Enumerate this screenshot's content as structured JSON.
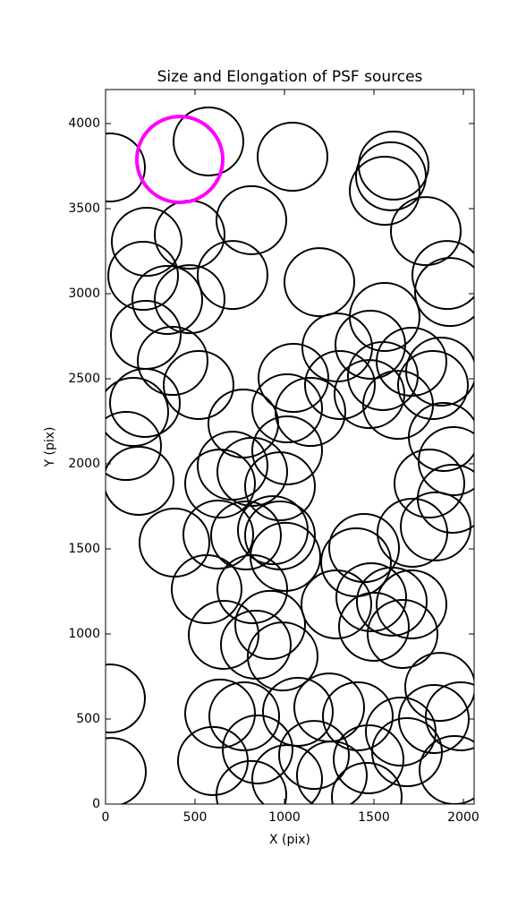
{
  "chart_data": {
    "type": "ellipse",
    "title": "Size and Elongation of PSF sources",
    "xlabel": "X (pix)",
    "ylabel": "Y (pix)",
    "xlim": [
      0,
      2060
    ],
    "ylim": [
      0,
      4200
    ],
    "xticks": [
      0,
      500,
      1000,
      1500,
      2000
    ],
    "yticks": [
      0,
      500,
      1000,
      1500,
      2000,
      2500,
      3000,
      3500,
      4000
    ],
    "ellipses": {
      "color": "#000000",
      "width": 390,
      "height": 400,
      "x": [
        25,
        575,
        1045,
        1610,
        1560,
        1595,
        815,
        1790,
        230,
        470,
        710,
        210,
        1195,
        1910,
        1925,
        345,
        470,
        1560,
        225,
        1295,
        1480,
        1710,
        375,
        1875,
        1550,
        1050,
        1830,
        520,
        1310,
        1475,
        1635,
        220,
        155,
        1015,
        1145,
        770,
        1890,
        115,
        1015,
        1945,
        710,
        185,
        640,
        820,
        975,
        1810,
        1940,
        935,
        385,
        630,
        785,
        975,
        1715,
        1845,
        1005,
        1445,
        1400,
        565,
        820,
        1290,
        1485,
        1710,
        1600,
        920,
        660,
        1500,
        1660,
        840,
        990,
        25,
        1870,
        640,
        775,
        1075,
        1250,
        1410,
        1835,
        1985,
        1650,
        850,
        1165,
        1470,
        1685,
        30,
        600,
        1015,
        1265,
        1950,
        815,
        1460
      ],
      "y": [
        3742,
        3895,
        3805,
        3753,
        3605,
        3690,
        3432,
        3368,
        3305,
        3347,
        3110,
        3105,
        3068,
        3110,
        3010,
        2963,
        2968,
        2863,
        2758,
        2684,
        2700,
        2600,
        2605,
        2542,
        2516,
        2505,
        2463,
        2463,
        2463,
        2410,
        2347,
        2358,
        2305,
        2326,
        2305,
        2237,
        2158,
        2105,
        2079,
        2016,
        1989,
        1900,
        1884,
        1953,
        1868,
        1884,
        1795,
        1610,
        1537,
        1584,
        1579,
        1579,
        1595,
        1632,
        1453,
        1505,
        1421,
        1263,
        1263,
        1174,
        1216,
        1174,
        1190,
        1053,
        995,
        1042,
        1000,
        937,
        868,
        621,
        689,
        532,
        516,
        542,
        568,
        516,
        500,
        516,
        426,
        321,
        289,
        263,
        305,
        189,
        253,
        147,
        168,
        200,
        53,
        42
      ]
    },
    "highlight": {
      "color": "#ff00ff",
      "x": 415,
      "y": 3789,
      "width": 480,
      "height": 505
    }
  }
}
